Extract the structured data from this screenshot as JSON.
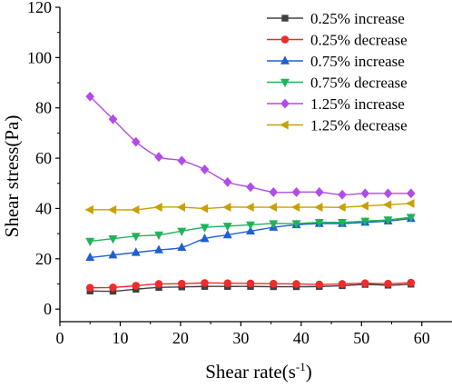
{
  "chart_data": {
    "type": "line",
    "title": "",
    "xlabel": "Shear rate(s",
    "xlabel_sup": "-1",
    "xlabel_tail": ")",
    "ylabel": "Shear stress(Pa)",
    "xlim": [
      0,
      65
    ],
    "ylim": [
      -5,
      120
    ],
    "xticks": [
      0,
      10,
      20,
      30,
      40,
      50,
      60
    ],
    "yticks": [
      0,
      20,
      40,
      60,
      80,
      100,
      120
    ],
    "grid": false,
    "legend_position": "top-right",
    "x": [
      5,
      8.8,
      12.6,
      16.4,
      20.2,
      24,
      27.8,
      31.6,
      35.4,
      39.2,
      43,
      46.8,
      50.6,
      54.4,
      58.2
    ],
    "series": [
      {
        "name": "0.25%  increase",
        "color": "#404040",
        "marker": "square",
        "values": [
          7.2,
          7.1,
          7.9,
          8.6,
          8.8,
          9.0,
          9.0,
          9.0,
          8.9,
          8.9,
          9.0,
          9.3,
          9.8,
          9.5,
          9.9
        ]
      },
      {
        "name": "0.25%  decrease",
        "color": "#ee2c2c",
        "marker": "circle",
        "values": [
          8.5,
          8.6,
          9.3,
          10.0,
          10.1,
          10.4,
          10.3,
          10.2,
          10.1,
          10.0,
          9.8,
          10.0,
          10.3,
          10.1,
          10.5
        ]
      },
      {
        "name": "0.75%  increase",
        "color": "#1f5fd1",
        "marker": "triangle-up",
        "values": [
          20.5,
          21.5,
          22.5,
          23.5,
          24.5,
          28.0,
          29.5,
          31.0,
          32.5,
          33.5,
          34.0,
          34.0,
          34.5,
          35.0,
          36.0
        ]
      },
      {
        "name": "0.75%  decrease",
        "color": "#22b35a",
        "marker": "triangle-down",
        "values": [
          27.0,
          28.0,
          29.0,
          29.5,
          31.0,
          32.5,
          33.0,
          33.5,
          34.0,
          34.0,
          34.5,
          34.5,
          35.0,
          35.5,
          36.5
        ]
      },
      {
        "name": "1.25%  increase",
        "color": "#b14ce8",
        "marker": "diamond",
        "values": [
          84.5,
          75.5,
          66.5,
          60.5,
          59.0,
          55.5,
          50.5,
          48.5,
          46.5,
          46.5,
          46.5,
          45.5,
          46.0,
          46.0,
          46.0
        ]
      },
      {
        "name": "1.25%  decrease",
        "color": "#c8a000",
        "marker": "triangle-left",
        "values": [
          39.5,
          39.5,
          39.5,
          40.5,
          40.5,
          40.0,
          40.5,
          40.5,
          40.5,
          40.5,
          40.5,
          40.5,
          41.0,
          41.5,
          42.0
        ]
      }
    ]
  }
}
